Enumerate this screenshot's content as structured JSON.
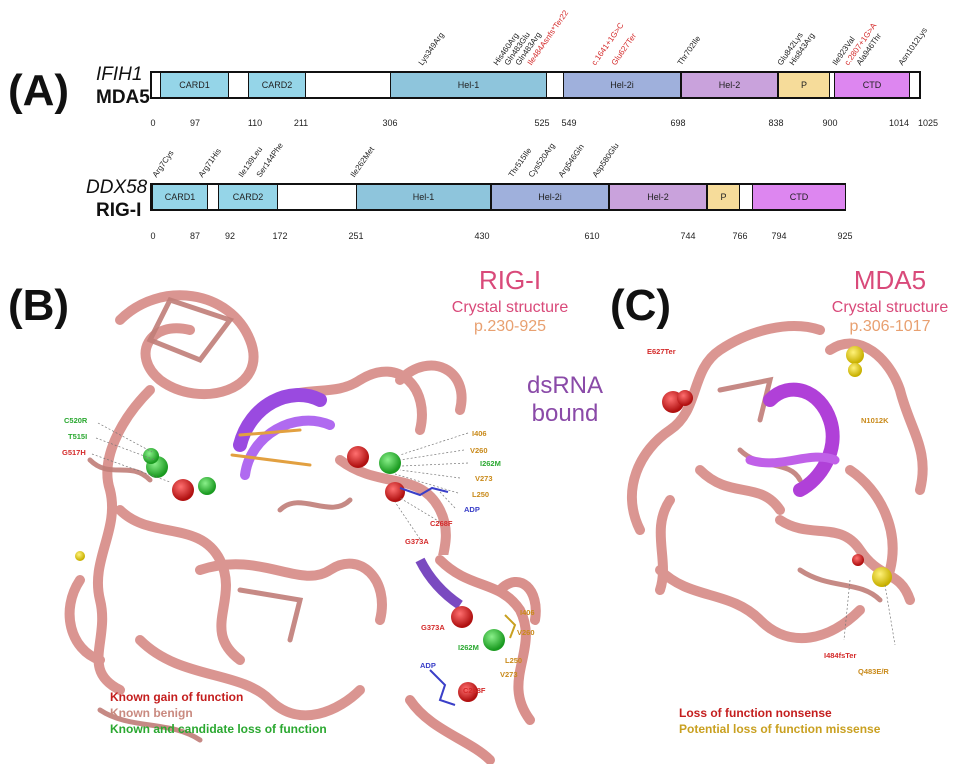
{
  "panel_a": {
    "letter": "(A)",
    "mda5": {
      "gene": "IFIH1",
      "protein": "MDA5",
      "domains": [
        {
          "label": "CARD1",
          "color": "#95d5e8"
        },
        {
          "label": "CARD2",
          "color": "#95d5e8"
        },
        {
          "label": "Hel-1",
          "color": "#8ec5dc"
        },
        {
          "label": "Hel-2i",
          "color": "#9fb0dc"
        },
        {
          "label": "Hel-2",
          "color": "#c9a2dc"
        },
        {
          "label": "P",
          "color": "#f6dc9a"
        },
        {
          "label": "CTD",
          "color": "#dd86f0"
        }
      ],
      "positions": [
        "0",
        "97",
        "110",
        "211",
        "306",
        "525",
        "549",
        "698",
        "838",
        "900",
        "1014",
        "1025"
      ],
      "variants": [
        {
          "label": "Lys349Arg",
          "color": "#222222"
        },
        {
          "label": "His460Arg",
          "color": "#222222"
        },
        {
          "label": "Gln483Glu",
          "color": "#222222"
        },
        {
          "label": "Gln483Arg",
          "color": "#222222"
        },
        {
          "label": "Ile484Asnfs*Ter22",
          "color": "#d42a2a"
        },
        {
          "label": "c.1641+1G>C",
          "color": "#d42a2a"
        },
        {
          "label": "Glu627Ter",
          "color": "#d42a2a"
        },
        {
          "label": "Thr702Ile",
          "color": "#222222"
        },
        {
          "label": "Glu842Lys",
          "color": "#222222"
        },
        {
          "label": "His843Arg",
          "color": "#222222"
        },
        {
          "label": "Ile923Val",
          "color": "#222222"
        },
        {
          "label": "c.2807+1G>A",
          "color": "#d42a2a"
        },
        {
          "label": "Ala946Thr",
          "color": "#222222"
        },
        {
          "label": "Asn1012Lys",
          "color": "#222222"
        }
      ]
    },
    "rigi": {
      "gene": "DDX58",
      "protein": "RIG-I",
      "domains": [
        {
          "label": "CARD1",
          "color": "#95d5e8"
        },
        {
          "label": "CARD2",
          "color": "#95d5e8"
        },
        {
          "label": "Hel-1",
          "color": "#8ec5dc"
        },
        {
          "label": "Hel-2i",
          "color": "#9fb0dc"
        },
        {
          "label": "Hel-2",
          "color": "#c9a2dc"
        },
        {
          "label": "P",
          "color": "#f6dc9a"
        },
        {
          "label": "CTD",
          "color": "#dd86f0"
        }
      ],
      "positions": [
        "0",
        "87",
        "92",
        "172",
        "251",
        "430",
        "610",
        "744",
        "766",
        "794",
        "925"
      ],
      "variants": [
        {
          "label": "Arg7Cys",
          "color": "#222222"
        },
        {
          "label": "Arg71His",
          "color": "#222222"
        },
        {
          "label": "Ile139Leu",
          "color": "#222222"
        },
        {
          "label": "Ser144Phe",
          "color": "#222222"
        },
        {
          "label": "Ile262Met",
          "color": "#222222"
        },
        {
          "label": "Thr515Ile",
          "color": "#222222"
        },
        {
          "label": "Cys520Arg",
          "color": "#222222"
        },
        {
          "label": "Arg546Gln",
          "color": "#222222"
        },
        {
          "label": "Asp580Glu",
          "color": "#222222"
        }
      ]
    }
  },
  "panel_b": {
    "letter": "(B)",
    "title": "RIG-I",
    "subtitle": "Crystal structure",
    "range": "p.230-925",
    "dsrna": [
      "dsRNA",
      "bound"
    ],
    "residues": [
      {
        "label": "C520R",
        "color": "#2aa830"
      },
      {
        "label": "T515I",
        "color": "#2aa830"
      },
      {
        "label": "G517H",
        "color": "#d42a2a"
      },
      {
        "label": "I406",
        "color": "#c98a1a"
      },
      {
        "label": "V260",
        "color": "#c98a1a"
      },
      {
        "label": "I262M",
        "color": "#2aa830"
      },
      {
        "label": "V273",
        "color": "#c98a1a"
      },
      {
        "label": "L250",
        "color": "#c98a1a"
      },
      {
        "label": "ADP",
        "color": "#3a3fc8"
      },
      {
        "label": "C268F",
        "color": "#d42a2a"
      },
      {
        "label": "G373A",
        "color": "#d42a2a"
      }
    ],
    "inset_residues": [
      {
        "label": "G373A",
        "color": "#d42a2a"
      },
      {
        "label": "I406",
        "color": "#c98a1a"
      },
      {
        "label": "V260",
        "color": "#c98a1a"
      },
      {
        "label": "I262M",
        "color": "#2aa830"
      },
      {
        "label": "L250",
        "color": "#c98a1a"
      },
      {
        "label": "ADP",
        "color": "#3a3fc8"
      },
      {
        "label": "V273",
        "color": "#c98a1a"
      },
      {
        "label": "C268F",
        "color": "#d42a2a"
      }
    ],
    "legend": [
      {
        "label": "Known gain of function",
        "color": "#c41e1e"
      },
      {
        "label": "Known benign",
        "color": "#c98a80"
      },
      {
        "label": "Known and candidate loss of function",
        "color": "#2aa830"
      }
    ]
  },
  "panel_c": {
    "letter": "(C)",
    "title": "MDA5",
    "subtitle": "Crystal structure",
    "range": "p.306-1017",
    "residues": [
      {
        "label": "E627Ter",
        "color": "#d42a2a"
      },
      {
        "label": "N1012K",
        "color": "#c98a1a"
      },
      {
        "label": "I484fsTer",
        "color": "#d42a2a"
      },
      {
        "label": "Q483E/R",
        "color": "#c98a1a"
      }
    ],
    "legend": [
      {
        "label": "Loss of function nonsense",
        "color": "#c41e1e"
      },
      {
        "label": "Potential loss of function missense",
        "color": "#c9a020"
      }
    ]
  },
  "colors": {
    "title_pink": "#d94a7a",
    "range_orange": "#e8a070",
    "dsrna_purple": "#8a4aa8",
    "protein_pink": "#e0a5a0",
    "rna_purple": "#a04ad8"
  }
}
